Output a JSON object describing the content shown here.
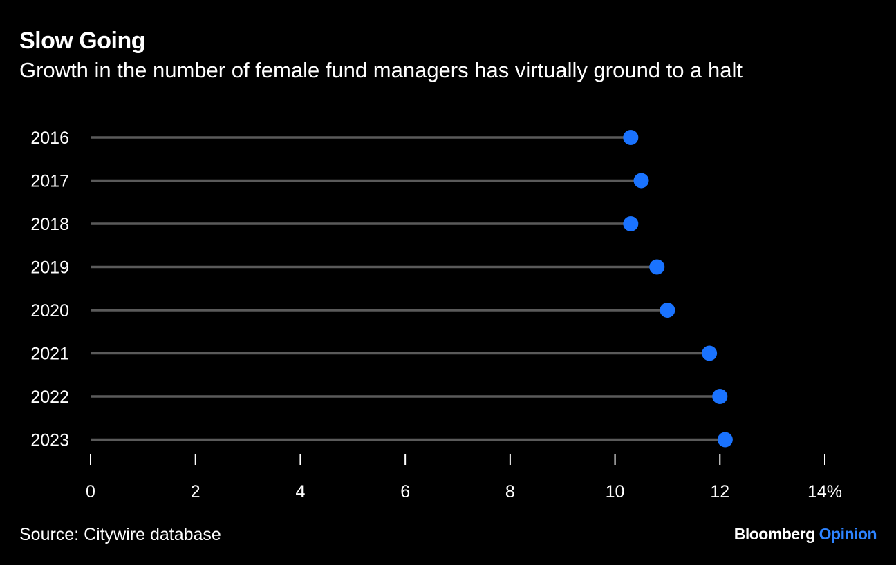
{
  "header": {
    "title": "Slow Going",
    "subtitle": "Growth in the number of female fund managers has virtually ground to a halt"
  },
  "footer": {
    "source": "Source: Citywire database",
    "brand_main": "Bloomberg",
    "brand_accent": "Opinion"
  },
  "colors": {
    "background": "#000000",
    "dot": "#1a73ff",
    "stem": "#5a5a5a",
    "text": "#ffffff",
    "brand_accent": "#2d83ff"
  },
  "chart_data": {
    "type": "lollipop",
    "title": "Slow Going",
    "subtitle": "Growth in the number of female fund managers has virtually ground to a halt",
    "xlabel": "",
    "ylabel": "",
    "categories": [
      "2016",
      "2017",
      "2018",
      "2019",
      "2020",
      "2021",
      "2022",
      "2023"
    ],
    "values": [
      10.3,
      10.5,
      10.3,
      10.8,
      11.0,
      11.8,
      12.0,
      12.1
    ],
    "xlim": [
      0,
      14
    ],
    "x_ticks": [
      0,
      2,
      4,
      6,
      8,
      10,
      12,
      14
    ],
    "x_tick_labels": [
      "0",
      "2",
      "4",
      "6",
      "8",
      "10",
      "12",
      "14%"
    ],
    "grid": false,
    "legend": "none"
  }
}
